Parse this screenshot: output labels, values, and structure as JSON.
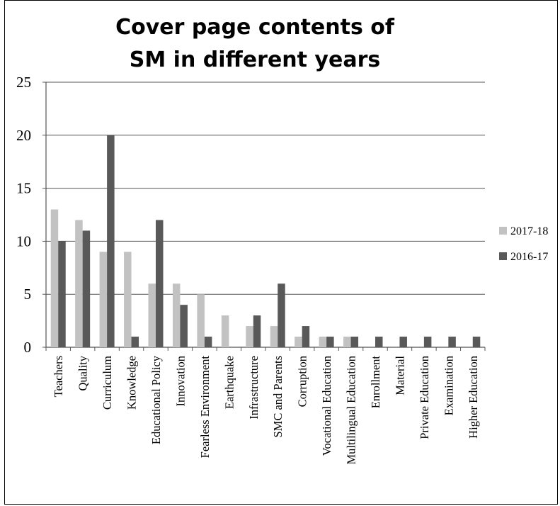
{
  "chart_data": {
    "type": "bar",
    "title_line1": "Cover page contents of",
    "title_line2": "SM in different years",
    "categories": [
      "Teachers",
      "Quality",
      "Curriculum",
      "Knowledge",
      "Educational Policy",
      "Innovation",
      "Fearless Environment",
      "Earthquake",
      "Infrastructure",
      "SMC and Parents",
      "Corruption",
      "Vocational Education",
      "Multilingual Education",
      "Enrollment",
      "Material",
      "Private Education",
      "Examination",
      "Higher Education"
    ],
    "series": [
      {
        "name": "2017-18",
        "color": "#c2c2c2",
        "values": [
          13,
          12,
          9,
          9,
          6,
          6,
          5,
          3,
          2,
          2,
          1,
          1,
          1,
          0,
          0,
          0,
          0,
          0
        ]
      },
      {
        "name": "2016-17",
        "color": "#595959",
        "values": [
          10,
          11,
          20,
          1,
          12,
          4,
          1,
          0,
          3,
          6,
          2,
          1,
          1,
          1,
          1,
          1,
          1,
          1
        ]
      }
    ],
    "yticks": [
      "0",
      "5",
      "10",
      "15",
      "20",
      "25"
    ],
    "ylim": [
      0,
      25
    ],
    "grid": true,
    "legend_position": "right"
  }
}
